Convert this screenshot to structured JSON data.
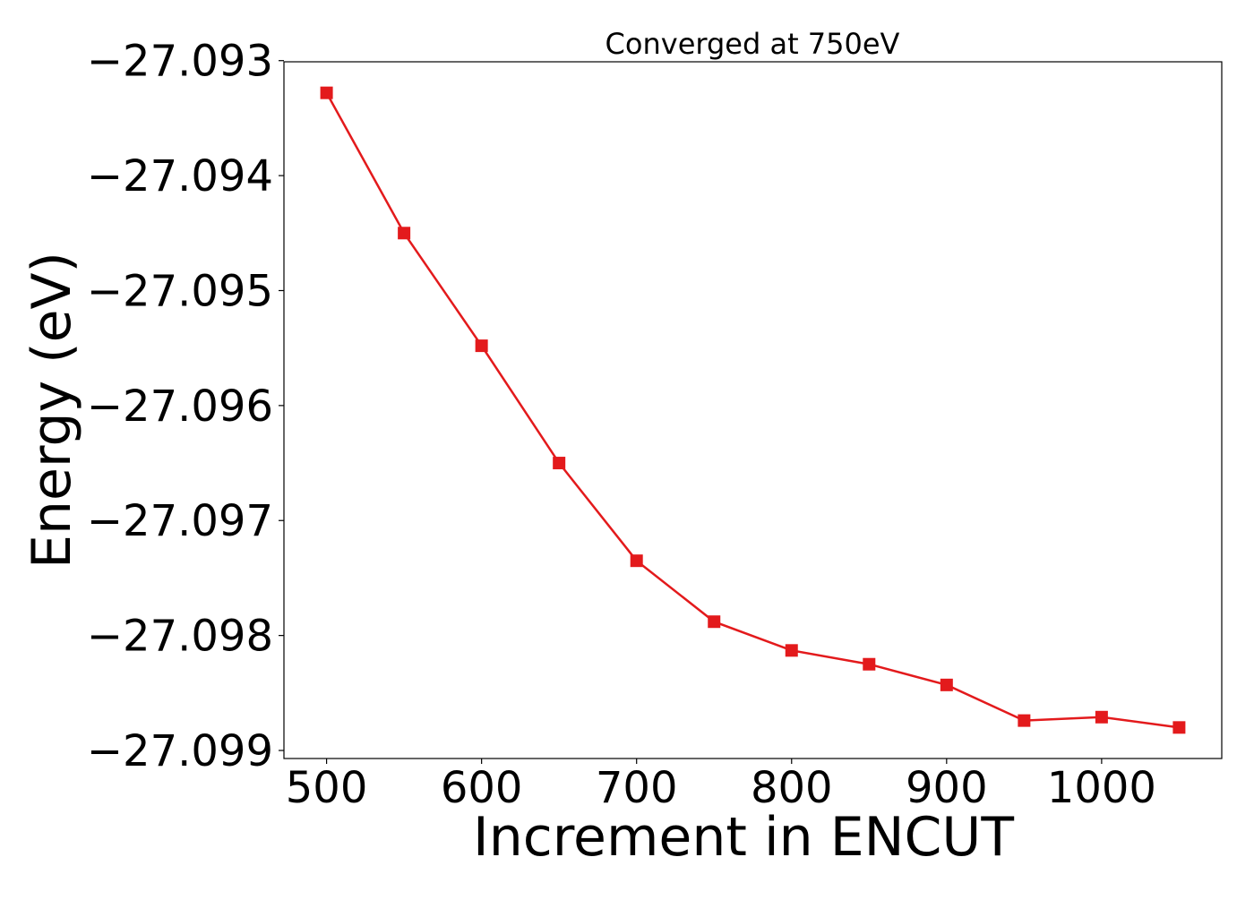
{
  "chart_data": {
    "type": "line",
    "title": "Converged at 750eV",
    "xlabel": "Increment in ENCUT",
    "ylabel": "Energy (eV)",
    "x": [
      500,
      550,
      600,
      650,
      700,
      750,
      800,
      850,
      900,
      950,
      1000,
      1050
    ],
    "series": [
      {
        "values": [
          -27.09328,
          -27.0945,
          -27.09548,
          -27.0965,
          -27.09735,
          -27.09788,
          -27.09813,
          -27.09825,
          -27.09843,
          -27.09874,
          -27.09871,
          -27.0988
        ],
        "color": "#e31a1c",
        "marker": "square"
      }
    ],
    "xticks": [
      500,
      600,
      700,
      800,
      900,
      1000
    ],
    "xtick_labels": [
      "500",
      "600",
      "700",
      "800",
      "900",
      "1000"
    ],
    "yticks": [
      -27.093,
      -27.094,
      -27.095,
      -27.096,
      -27.097,
      -27.098,
      -27.099
    ],
    "ytick_labels": [
      "−27.093",
      "−27.094",
      "−27.095",
      "−27.096",
      "−27.097",
      "−27.098",
      "−27.099"
    ],
    "xlim": [
      472.5,
      1077.5
    ],
    "ylim": [
      -27.09907,
      -27.09301
    ],
    "grid": false,
    "legend": "none"
  }
}
